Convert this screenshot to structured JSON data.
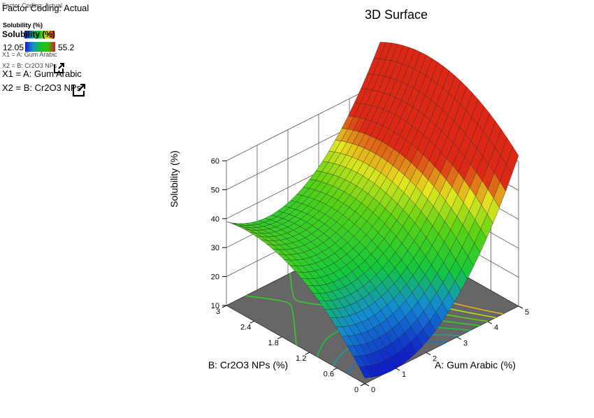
{
  "legend": {
    "factor_coding": "Factor Coding: Actual",
    "response_title": "Solubility (%)",
    "response_title_big": "Solubility (%)",
    "color_min": "12.05",
    "color_max": "55.2",
    "x1": "X1 = A: Gum Arabic",
    "x2": "X2 = B: Cr2O3 NPs",
    "colors": [
      "#1010d0",
      "#00a0a0",
      "#00c000",
      "#e0e000",
      "#e00000"
    ]
  },
  "chart_data": {
    "type": "surface3d",
    "title": "3D Surface",
    "xlabel": "A: Gum Arabic (%)",
    "ylabel": "B: Cr2O3 NPs (%)",
    "zlabel": "Solubility (%)",
    "x_ticks": [
      "0",
      "1",
      "2",
      "3",
      "4",
      "5"
    ],
    "y_ticks": [
      "0",
      "0.6",
      "1.2",
      "1.8",
      "2.4",
      "3"
    ],
    "z_ticks": [
      "10",
      "20",
      "30",
      "40",
      "50",
      "60"
    ],
    "xlim": [
      0,
      5
    ],
    "ylim": [
      0,
      3
    ],
    "zlim": [
      10,
      60
    ],
    "color_range": [
      12.05,
      55.2
    ],
    "corner_values": {
      "A0_B0": 12.05,
      "A0_B3": 36,
      "A5_B0": 50,
      "A5_B3": 55.2,
      "A2_B1.5": 20
    },
    "contour_levels": [
      20,
      25,
      30,
      35,
      40,
      45,
      50
    ]
  }
}
